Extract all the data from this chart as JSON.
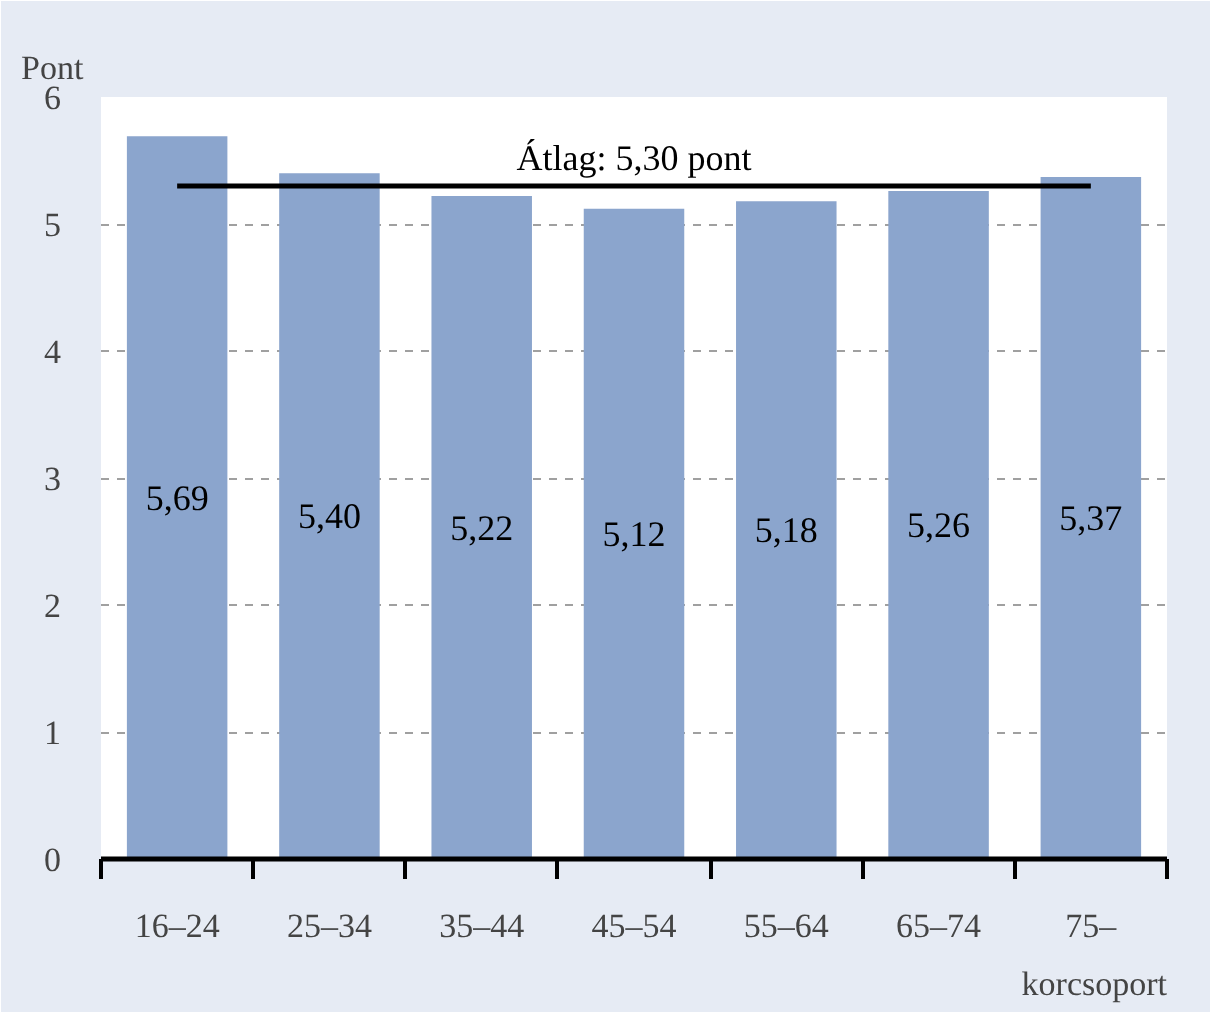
{
  "chart_data": {
    "type": "bar",
    "ylabel": "Pont",
    "xlabel": "korcsoport",
    "categories": [
      "16–24",
      "25–34",
      "35–44",
      "45–54",
      "55–64",
      "65–74",
      "75–"
    ],
    "values": [
      5.69,
      5.4,
      5.22,
      5.12,
      5.18,
      5.26,
      5.37
    ],
    "value_labels": [
      "5,69",
      "5,40",
      "5,22",
      "5,12",
      "5,18",
      "5,26",
      "5,37"
    ],
    "color": "#8ba5cd",
    "ylim": [
      0,
      6
    ],
    "yticks": [
      0,
      1,
      2,
      3,
      4,
      5,
      6
    ],
    "grid": "y",
    "ref_lines": [
      {
        "axis": "y",
        "value": 5.3,
        "label": "Átlag: 5,30 pont",
        "color": "#000000"
      }
    ]
  }
}
